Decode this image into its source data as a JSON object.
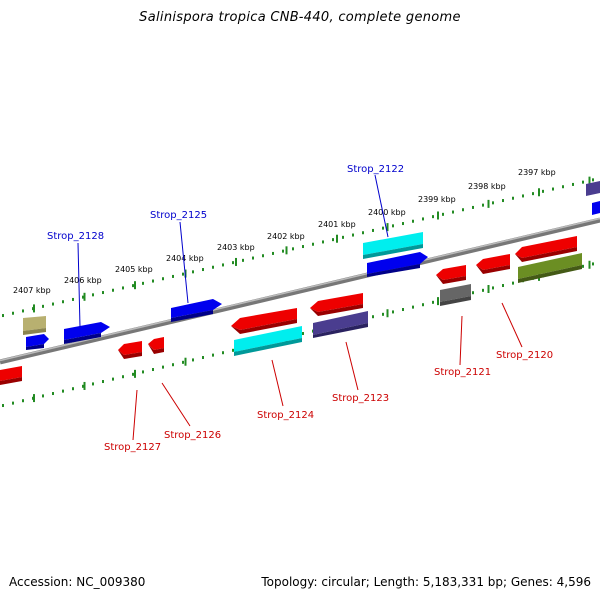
{
  "title": "Salinispora tropica CNB-440, complete genome",
  "footer": {
    "accession": "Accession: NC_009380",
    "summary": "Topology: circular; Length: 5,183,331 bp; Genes: 4,596"
  },
  "kbp_labels": [
    "2407 kbp",
    "2406 kbp",
    "2405 kbp",
    "2404 kbp",
    "2403 kbp",
    "2402 kbp",
    "2401 kbp",
    "2400 kbp",
    "2399 kbp",
    "2398 kbp",
    "2397 kbp"
  ],
  "gene_labels_top": [
    "Strop_2128",
    "Strop_2125",
    "Strop_2122"
  ],
  "gene_labels_bottom": [
    "Strop_2127",
    "Strop_2126",
    "Strop_2124",
    "Strop_2123",
    "Strop_2121",
    "Strop_2120"
  ],
  "colors": {
    "forward_label": "#0000cc",
    "reverse_label": "#cc0000",
    "red": "#ee0000",
    "blue": "#0000ee",
    "cyan": "#00eeee",
    "slate": "#4a3d8f",
    "olive": "#6b8e23",
    "khaki": "#b8b070",
    "gray": "#666666",
    "tick": "#228b22"
  }
}
